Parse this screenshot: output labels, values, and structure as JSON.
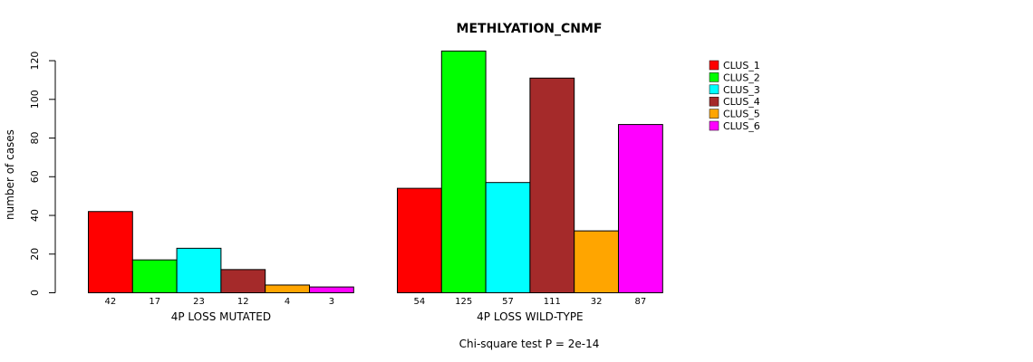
{
  "chart_data": {
    "type": "bar",
    "title": "METHLYATION_CNMF",
    "ylabel": "number of cases",
    "ylim": [
      0,
      125
    ],
    "yticks": [
      0,
      20,
      40,
      60,
      80,
      100,
      120
    ],
    "groups": [
      "4P LOSS MUTATED",
      "4P LOSS WILD-TYPE"
    ],
    "series": [
      {
        "name": "CLUS_1",
        "color": "#ff0000",
        "values": [
          42,
          54
        ],
        "labels": [
          "42",
          "54"
        ]
      },
      {
        "name": "CLUS_2",
        "color": "#00ff00",
        "values": [
          17,
          125
        ],
        "labels": [
          "17",
          "125"
        ]
      },
      {
        "name": "CLUS_3",
        "color": "#00ffff",
        "values": [
          23,
          57
        ],
        "labels": [
          "23",
          "57"
        ]
      },
      {
        "name": "CLUS_4",
        "color": "#a52a2a",
        "values": [
          12,
          111
        ],
        "labels": [
          "12",
          "111"
        ]
      },
      {
        "name": "CLUS_5",
        "color": "#ffa500",
        "values": [
          4,
          32
        ],
        "labels": [
          "4",
          "32"
        ]
      },
      {
        "name": "CLUS_6",
        "color": "#ff00ff",
        "values": [
          3,
          87
        ],
        "labels": [
          "3",
          "87"
        ]
      }
    ],
    "legend_position": "top-right",
    "grid": false,
    "footnote": "Chi-square test P = 2e-14"
  }
}
